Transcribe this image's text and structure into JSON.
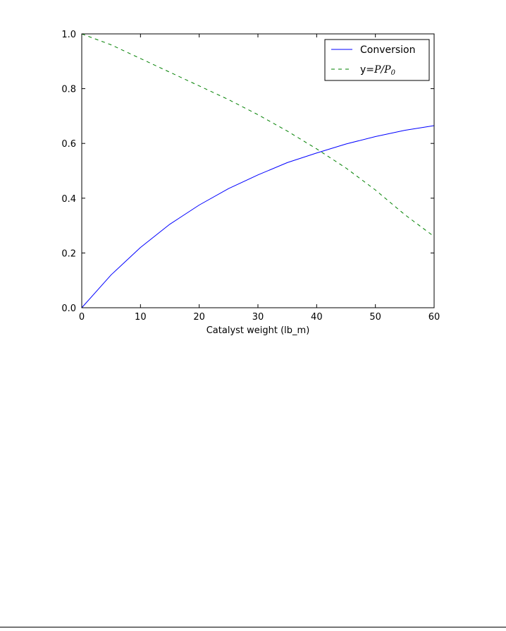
{
  "chart_data": {
    "type": "line",
    "xlabel": "Catalyst weight (lb_m)",
    "ylabel": "",
    "xlim": [
      0,
      60
    ],
    "ylim": [
      0.0,
      1.0
    ],
    "x_ticks": [
      0,
      10,
      20,
      30,
      40,
      50,
      60
    ],
    "x_tick_labels": [
      "0",
      "10",
      "20",
      "30",
      "40",
      "50",
      "60"
    ],
    "y_ticks": [
      0.0,
      0.2,
      0.4,
      0.6,
      0.8,
      1.0
    ],
    "y_tick_labels": [
      "0.0",
      "0.2",
      "0.4",
      "0.6",
      "0.8",
      "1.0"
    ],
    "grid": false,
    "legend_position": "top-right",
    "x": [
      0,
      5,
      10,
      15,
      20,
      25,
      30,
      35,
      40,
      45,
      50,
      55,
      60
    ],
    "series": [
      {
        "name": "Conversion",
        "color": "#0000ff",
        "style": "solid",
        "values": [
          0.0,
          0.12,
          0.22,
          0.305,
          0.375,
          0.435,
          0.485,
          0.53,
          0.565,
          0.598,
          0.625,
          0.648,
          0.665
        ]
      },
      {
        "name": "y=P/P0",
        "legend_prefix": "y=",
        "legend_math": "P/P",
        "legend_sub": "0",
        "color": "#008000",
        "style": "dashed",
        "values": [
          1.0,
          0.96,
          0.91,
          0.86,
          0.81,
          0.76,
          0.705,
          0.645,
          0.58,
          0.51,
          0.43,
          0.34,
          0.26
        ]
      }
    ]
  }
}
